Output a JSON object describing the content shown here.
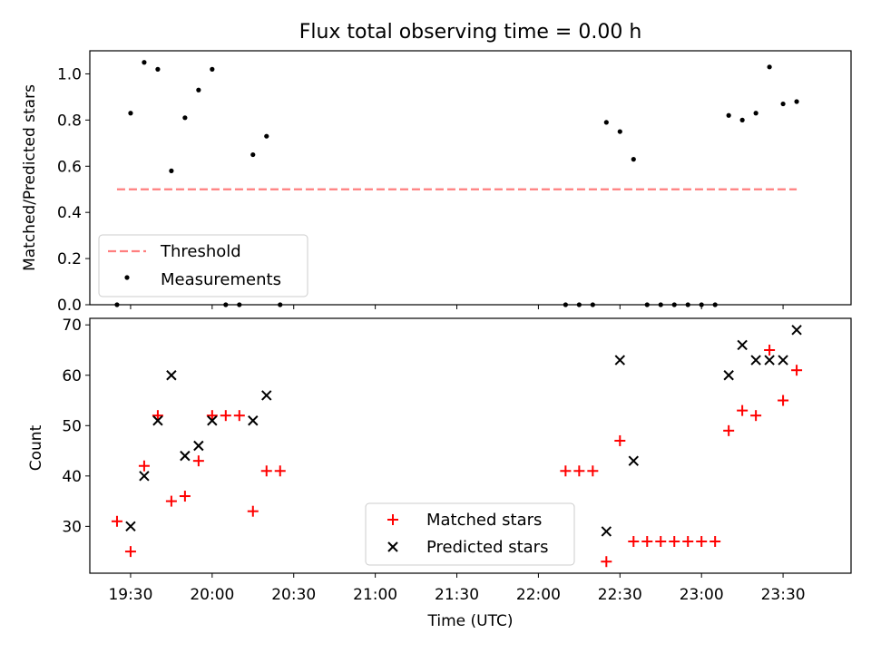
{
  "chart_data": [
    {
      "type": "scatter",
      "title": "Flux total observing time = 0.00 h",
      "xlabel": "",
      "ylabel": "Matched/Predicted stars",
      "xlim": [
        "19:15",
        "23:55"
      ],
      "ylim": [
        0,
        1.1
      ],
      "yticks": [
        0.0,
        0.2,
        0.4,
        0.6,
        0.8,
        1.0
      ],
      "ytick_labels": [
        "0.0",
        "0.2",
        "0.4",
        "0.6",
        "0.8",
        "1.0"
      ],
      "legend_position": "lower-left",
      "grid": false,
      "threshold": {
        "name": "Threshold",
        "value": 0.5,
        "x_range": [
          "19:25",
          "23:35"
        ],
        "color": "#ff7f7f",
        "style": "dashed"
      },
      "series": [
        {
          "name": "Measurements",
          "marker": "dot",
          "color": "#000000",
          "points": [
            {
              "x": "19:25",
              "y": 0.0
            },
            {
              "x": "19:30",
              "y": 0.83
            },
            {
              "x": "19:35",
              "y": 1.05
            },
            {
              "x": "19:40",
              "y": 1.02
            },
            {
              "x": "19:45",
              "y": 0.58
            },
            {
              "x": "19:50",
              "y": 0.81
            },
            {
              "x": "19:55",
              "y": 0.93
            },
            {
              "x": "20:00",
              "y": 1.02
            },
            {
              "x": "20:05",
              "y": 0.0
            },
            {
              "x": "20:10",
              "y": 0.0
            },
            {
              "x": "20:15",
              "y": 0.65
            },
            {
              "x": "20:20",
              "y": 0.73
            },
            {
              "x": "20:25",
              "y": 0.0
            },
            {
              "x": "22:10",
              "y": 0.0
            },
            {
              "x": "22:15",
              "y": 0.0
            },
            {
              "x": "22:20",
              "y": 0.0
            },
            {
              "x": "22:25",
              "y": 0.79
            },
            {
              "x": "22:30",
              "y": 0.75
            },
            {
              "x": "22:35",
              "y": 0.63
            },
            {
              "x": "22:40",
              "y": 0.0
            },
            {
              "x": "22:45",
              "y": 0.0
            },
            {
              "x": "22:50",
              "y": 0.0
            },
            {
              "x": "22:55",
              "y": 0.0
            },
            {
              "x": "23:00",
              "y": 0.0
            },
            {
              "x": "23:05",
              "y": 0.0
            },
            {
              "x": "23:10",
              "y": 0.82
            },
            {
              "x": "23:15",
              "y": 0.8
            },
            {
              "x": "23:20",
              "y": 0.83
            },
            {
              "x": "23:25",
              "y": 1.03
            },
            {
              "x": "23:30",
              "y": 0.87
            },
            {
              "x": "23:35",
              "y": 0.88
            }
          ]
        }
      ]
    },
    {
      "type": "scatter",
      "title": "",
      "xlabel": "Time (UTC)",
      "ylabel": "Count",
      "xlim": [
        "19:15",
        "23:55"
      ],
      "ylim": [
        20.7,
        71.3
      ],
      "xticks": [
        "19:30",
        "20:00",
        "20:30",
        "21:00",
        "21:30",
        "22:00",
        "22:30",
        "23:00",
        "23:30"
      ],
      "yticks": [
        30,
        40,
        50,
        60,
        70
      ],
      "ytick_labels": [
        "30",
        "40",
        "50",
        "60",
        "70"
      ],
      "legend_position": "lower-center",
      "grid": false,
      "series": [
        {
          "name": "Matched stars",
          "marker": "plus",
          "color": "#ff0000",
          "points": [
            {
              "x": "19:25",
              "y": 31
            },
            {
              "x": "19:30",
              "y": 25
            },
            {
              "x": "19:35",
              "y": 42
            },
            {
              "x": "19:40",
              "y": 52
            },
            {
              "x": "19:45",
              "y": 35
            },
            {
              "x": "19:50",
              "y": 36
            },
            {
              "x": "19:55",
              "y": 43
            },
            {
              "x": "20:00",
              "y": 52
            },
            {
              "x": "20:05",
              "y": 52
            },
            {
              "x": "20:10",
              "y": 52
            },
            {
              "x": "20:15",
              "y": 33
            },
            {
              "x": "20:20",
              "y": 41
            },
            {
              "x": "20:25",
              "y": 41
            },
            {
              "x": "22:10",
              "y": 41
            },
            {
              "x": "22:15",
              "y": 41
            },
            {
              "x": "22:20",
              "y": 41
            },
            {
              "x": "22:25",
              "y": 23
            },
            {
              "x": "22:30",
              "y": 47
            },
            {
              "x": "22:35",
              "y": 27
            },
            {
              "x": "22:40",
              "y": 27
            },
            {
              "x": "22:45",
              "y": 27
            },
            {
              "x": "22:50",
              "y": 27
            },
            {
              "x": "22:55",
              "y": 27
            },
            {
              "x": "23:00",
              "y": 27
            },
            {
              "x": "23:05",
              "y": 27
            },
            {
              "x": "23:10",
              "y": 49
            },
            {
              "x": "23:15",
              "y": 53
            },
            {
              "x": "23:20",
              "y": 52
            },
            {
              "x": "23:25",
              "y": 65
            },
            {
              "x": "23:30",
              "y": 55
            },
            {
              "x": "23:35",
              "y": 61
            }
          ]
        },
        {
          "name": "Predicted stars",
          "marker": "x",
          "color": "#000000",
          "points": [
            {
              "x": "19:30",
              "y": 30
            },
            {
              "x": "19:35",
              "y": 40
            },
            {
              "x": "19:40",
              "y": 51
            },
            {
              "x": "19:45",
              "y": 60
            },
            {
              "x": "19:50",
              "y": 44
            },
            {
              "x": "19:55",
              "y": 46
            },
            {
              "x": "20:00",
              "y": 51
            },
            {
              "x": "20:15",
              "y": 51
            },
            {
              "x": "20:20",
              "y": 56
            },
            {
              "x": "22:25",
              "y": 29
            },
            {
              "x": "22:30",
              "y": 63
            },
            {
              "x": "22:35",
              "y": 43
            },
            {
              "x": "23:10",
              "y": 60
            },
            {
              "x": "23:15",
              "y": 66
            },
            {
              "x": "23:20",
              "y": 63
            },
            {
              "x": "23:25",
              "y": 63
            },
            {
              "x": "23:30",
              "y": 63
            },
            {
              "x": "23:35",
              "y": 69
            }
          ]
        }
      ]
    }
  ]
}
